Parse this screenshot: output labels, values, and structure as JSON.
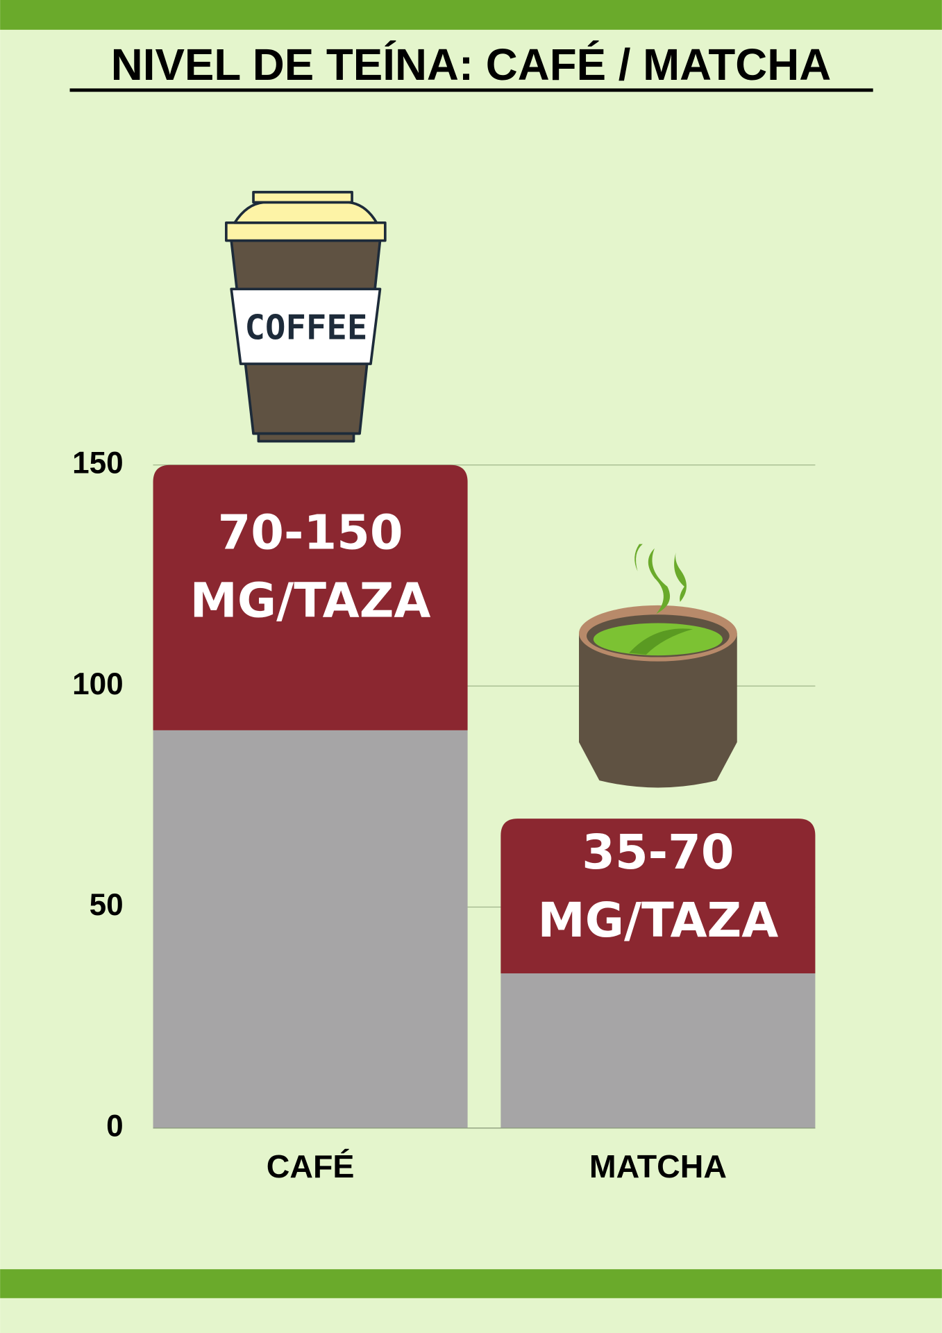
{
  "chart_data": {
    "type": "bar",
    "stacked": true,
    "title": "NIVEL DE TEÍNA: CAFÉ / MATCHA",
    "categories": [
      "CAFÉ",
      "MATCHA"
    ],
    "series": [
      {
        "color": "#a6a5a6",
        "values": [
          90,
          35
        ]
      },
      {
        "color": "#8b2730",
        "values": [
          60,
          35
        ]
      }
    ],
    "annotations": [
      [
        "70-150",
        "MG/TAZA"
      ],
      [
        "35-70",
        "MG/TAZA"
      ]
    ],
    "ylim": [
      0,
      150
    ],
    "yticks": [
      0,
      50,
      100,
      150
    ],
    "grid": true
  }
}
